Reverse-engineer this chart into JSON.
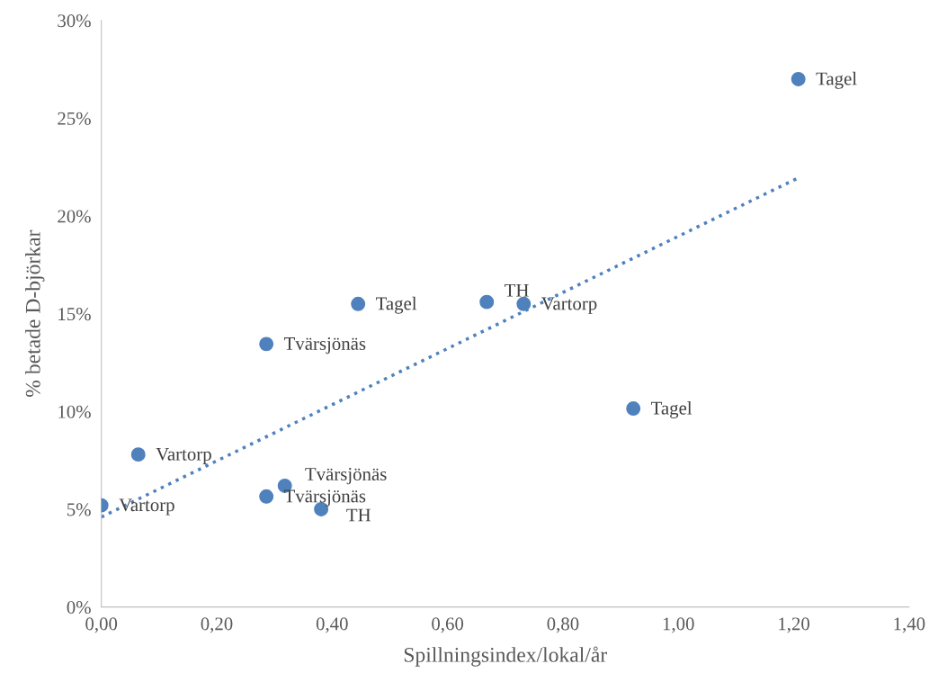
{
  "chart_data": {
    "type": "scatter",
    "xlabel": "Spillningsindex/lokal/år",
    "ylabel": "% betade D-björkar",
    "series": [
      {
        "color": "#4f81bd",
        "x": [
          0.0,
          0.064,
          0.286,
          0.286,
          0.318,
          0.381,
          0.445,
          0.668,
          0.732,
          0.922,
          1.208
        ],
        "values": [
          5.2,
          7.8,
          5.65,
          13.45,
          6.2,
          5.0,
          15.5,
          15.6,
          15.5,
          10.15,
          27.0
        ],
        "marker": "circle"
      },
      {
        "type": "line",
        "color": "#4f81bd",
        "x": [
          0.0,
          1.208
        ],
        "values": [
          4.6,
          21.95
        ],
        "line_style": "dotted",
        "marker": "none"
      }
    ],
    "annotations": [
      {
        "text": "Vartorp",
        "x": 0.0,
        "y": 5.2
      },
      {
        "text": "Vartorp",
        "x": 0.064,
        "y": 7.8
      },
      {
        "text": "Tvärsjönäs",
        "x": 0.286,
        "y": 5.65
      },
      {
        "text": "Tvärsjönäs",
        "x": 0.286,
        "y": 13.45
      },
      {
        "text": "Tvärsjönäs",
        "x": 0.318,
        "y": 6.2
      },
      {
        "text": "TH",
        "x": 0.381,
        "y": 5.0
      },
      {
        "text": "Tagel",
        "x": 0.445,
        "y": 15.5
      },
      {
        "text": "TH",
        "x": 0.668,
        "y": 15.6
      },
      {
        "text": "Vartorp",
        "x": 0.732,
        "y": 15.5
      },
      {
        "text": "Tagel",
        "x": 0.922,
        "y": 10.15
      },
      {
        "text": "Tagel",
        "x": 1.208,
        "y": 27.0
      }
    ],
    "xlim": [
      0,
      1.4
    ],
    "xticks": [
      {
        "value": 0,
        "label": "0,00"
      },
      {
        "value": 0.2,
        "label": "0,20"
      },
      {
        "value": 0.4,
        "label": "0,40"
      },
      {
        "value": 0.6,
        "label": "0,60"
      },
      {
        "value": 0.8,
        "label": "0,80"
      },
      {
        "value": 1.0,
        "label": "1,00"
      },
      {
        "value": 1.2,
        "label": "1,20"
      },
      {
        "value": 1.4,
        "label": "1,40"
      }
    ],
    "ylim": [
      0,
      30
    ],
    "yticks": [
      {
        "value": 0,
        "label": "0%"
      },
      {
        "value": 5,
        "label": "5%"
      },
      {
        "value": 10,
        "label": "10%"
      },
      {
        "value": 15,
        "label": "15%"
      },
      {
        "value": 20,
        "label": "20%"
      },
      {
        "value": 25,
        "label": "25%"
      },
      {
        "value": 30,
        "label": "30%"
      }
    ],
    "grid": false,
    "legend": false
  }
}
